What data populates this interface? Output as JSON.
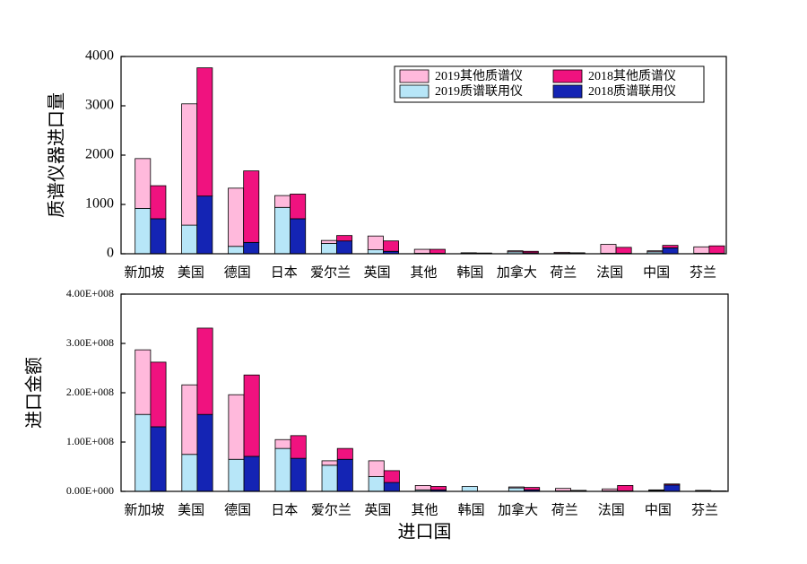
{
  "chart_data": [
    {
      "type": "bar",
      "stacked": true,
      "ylabel": "质谱仪器进口量",
      "categories": [
        "新加坡",
        "美国",
        "德国",
        "日本",
        "爱尔兰",
        "英国",
        "其他",
        "韩国",
        "加拿大",
        "荷兰",
        "法国",
        "中国",
        "芬兰"
      ],
      "ylim": [
        0,
        4000
      ],
      "yticks": [
        0,
        1000,
        2000,
        3000,
        4000
      ],
      "legend": "upper right",
      "series": [
        {
          "name": "2019质谱联用仪",
          "color": "#b7e6f8",
          "stack": 0,
          "values": [
            920,
            580,
            150,
            940,
            210,
            80,
            10,
            10,
            40,
            10,
            10,
            40,
            10
          ]
        },
        {
          "name": "2019其他质谱仪",
          "color": "#ffb9dc",
          "stack": 0,
          "values": [
            1010,
            2460,
            1180,
            240,
            60,
            280,
            80,
            10,
            20,
            20,
            180,
            20,
            130
          ]
        },
        {
          "name": "2018质谱联用仪",
          "color": "#1424b4",
          "stack": 1,
          "values": [
            710,
            1170,
            230,
            710,
            260,
            50,
            10,
            5,
            20,
            10,
            10,
            120,
            10
          ]
        },
        {
          "name": "2018其他质谱仪",
          "color": "#f0127f",
          "stack": 1,
          "values": [
            670,
            2600,
            1450,
            500,
            110,
            210,
            80,
            10,
            30,
            10,
            120,
            50,
            150
          ]
        }
      ]
    },
    {
      "type": "bar",
      "stacked": true,
      "ylabel": "进口金额",
      "xlabel": "进口国",
      "categories": [
        "新加坡",
        "美国",
        "德国",
        "日本",
        "爱尔兰",
        "英国",
        "其他",
        "韩国",
        "加拿大",
        "荷兰",
        "法国",
        "中国",
        "芬兰"
      ],
      "ylim": [
        0,
        400000000
      ],
      "yticks": [
        {
          "value": 0,
          "label": "0.00E+000"
        },
        {
          "value": 100000000,
          "label": "1.00E+008"
        },
        {
          "value": 200000000,
          "label": "2.00E+008"
        },
        {
          "value": 300000000,
          "label": "3.00E+008"
        },
        {
          "value": 400000000,
          "label": "4.00E+008"
        }
      ],
      "series": [
        {
          "color": "#b7e6f8",
          "stack": 0,
          "values": [
            156000000,
            75000000,
            65000000,
            87000000,
            53000000,
            30000000,
            3000000,
            10000000,
            7000000,
            1000000,
            1000000,
            2000000,
            1000000
          ]
        },
        {
          "color": "#ffb9dc",
          "stack": 0,
          "values": [
            131000000,
            141000000,
            131000000,
            18000000,
            9000000,
            32000000,
            9000000,
            0,
            2000000,
            5000000,
            4000000,
            1000000,
            1000000
          ]
        },
        {
          "color": "#1424b4",
          "stack": 1,
          "values": [
            131000000,
            156000000,
            71000000,
            67000000,
            65000000,
            18000000,
            3000000,
            0,
            3000000,
            1000000,
            1000000,
            13000000,
            500000
          ]
        },
        {
          "color": "#f0127f",
          "stack": 1,
          "values": [
            131000000,
            175000000,
            165000000,
            46000000,
            22000000,
            24000000,
            7000000,
            0,
            5000000,
            1000000,
            11000000,
            2000000,
            500000
          ]
        }
      ]
    }
  ]
}
